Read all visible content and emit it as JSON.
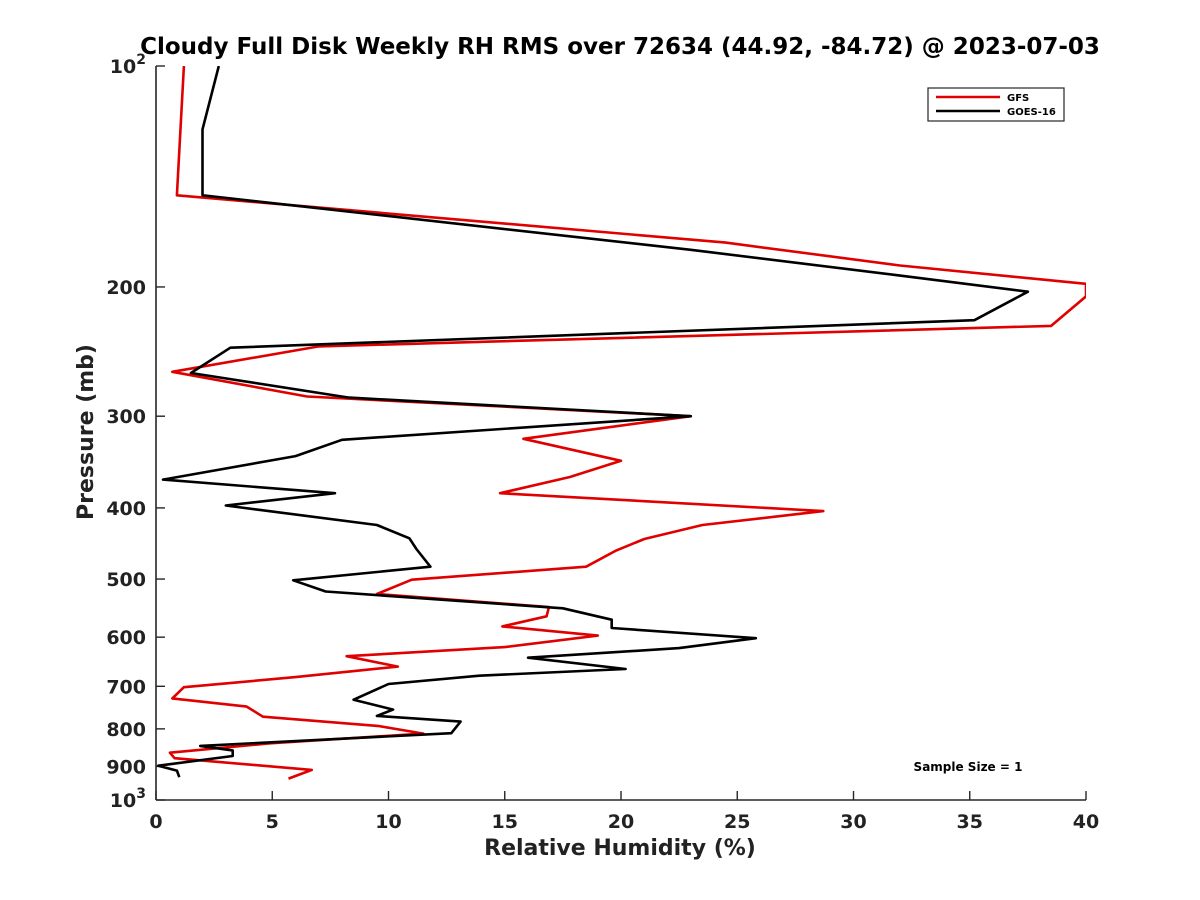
{
  "chart_data": {
    "type": "line",
    "title": "Cloudy Full Disk Weekly RH RMS over 72634 (44.92, -84.72) @ 2023-07-03",
    "xlabel": "Relative Humidity (%)",
    "ylabel": "Pressure (mb)",
    "xlim": [
      0,
      40
    ],
    "ylim": [
      100,
      1000
    ],
    "yscale": "log",
    "y_reversed": true,
    "x_ticks": [
      0,
      5,
      10,
      15,
      20,
      25,
      30,
      35,
      40
    ],
    "y_ticks": [
      {
        "value": 100,
        "label": "10",
        "sup": "2"
      },
      {
        "value": 200,
        "label": "200"
      },
      {
        "value": 300,
        "label": "300"
      },
      {
        "value": 400,
        "label": "400"
      },
      {
        "value": 500,
        "label": "500"
      },
      {
        "value": 600,
        "label": "600"
      },
      {
        "value": 700,
        "label": "700"
      },
      {
        "value": 800,
        "label": "800"
      },
      {
        "value": 900,
        "label": "900"
      },
      {
        "value": 1000,
        "label": "10",
        "sup": "3"
      }
    ],
    "grid": false,
    "legend_position": "top-right",
    "annotation": "Sample Size = 1",
    "series": [
      {
        "name": "GFS",
        "color": "#e00000",
        "points": [
          [
            1.2,
            100
          ],
          [
            0.9,
            150
          ],
          [
            24.5,
            174
          ],
          [
            32,
            187
          ],
          [
            40,
            198
          ],
          [
            40,
            206
          ],
          [
            38.5,
            226
          ],
          [
            7,
            241
          ],
          [
            0.7,
            261
          ],
          [
            6.5,
            282
          ],
          [
            23,
            300
          ],
          [
            15.8,
            322
          ],
          [
            20,
            345
          ],
          [
            17.8,
            363
          ],
          [
            14.8,
            382
          ],
          [
            28.7,
            404
          ],
          [
            23.5,
            422
          ],
          [
            21,
            441
          ],
          [
            19.8,
            457
          ],
          [
            18.5,
            481
          ],
          [
            11,
            501
          ],
          [
            9.5,
            524
          ],
          [
            16.9,
            546
          ],
          [
            16.8,
            562
          ],
          [
            14.9,
            580
          ],
          [
            19,
            597
          ],
          [
            15,
            619
          ],
          [
            8.2,
            637
          ],
          [
            10.4,
            658
          ],
          [
            6,
            680
          ],
          [
            1.2,
            702
          ],
          [
            0.7,
            727
          ],
          [
            3.9,
            746
          ],
          [
            4.6,
            770
          ],
          [
            9.6,
            793
          ],
          [
            11.5,
            812
          ],
          [
            4.9,
            837
          ],
          [
            0.6,
            862
          ],
          [
            0.8,
            877
          ],
          [
            6.7,
            910
          ],
          [
            5.7,
            935
          ]
        ]
      },
      {
        "name": "GOES-16",
        "color": "#000000",
        "points": [
          [
            2.7,
            100
          ],
          [
            2,
            122
          ],
          [
            2,
            150
          ],
          [
            23,
            178
          ],
          [
            32,
            193
          ],
          [
            37.5,
            203
          ],
          [
            35.2,
            222
          ],
          [
            3.2,
            242
          ],
          [
            1.5,
            262
          ],
          [
            8.3,
            283
          ],
          [
            23,
            300
          ],
          [
            8,
            323
          ],
          [
            6,
            340
          ],
          [
            0.3,
            366
          ],
          [
            7.7,
            382
          ],
          [
            3,
            397
          ],
          [
            9.5,
            422
          ],
          [
            10.9,
            440
          ],
          [
            11.2,
            455
          ],
          [
            11.8,
            481
          ],
          [
            5.9,
            502
          ],
          [
            7.3,
            520
          ],
          [
            17.5,
            548
          ],
          [
            19.6,
            568
          ],
          [
            19.6,
            583
          ],
          [
            25.8,
            602
          ],
          [
            22.5,
            621
          ],
          [
            16,
            640
          ],
          [
            20.2,
            663
          ],
          [
            13.9,
            677
          ],
          [
            10,
            695
          ],
          [
            8.5,
            730
          ],
          [
            10.2,
            753
          ],
          [
            9.5,
            768
          ],
          [
            13.1,
            782
          ],
          [
            12.7,
            811
          ],
          [
            1.9,
            844
          ],
          [
            3.3,
            856
          ],
          [
            3.3,
            871
          ],
          [
            0.1,
            898
          ],
          [
            0.9,
            912
          ],
          [
            1,
            931
          ]
        ]
      }
    ]
  }
}
